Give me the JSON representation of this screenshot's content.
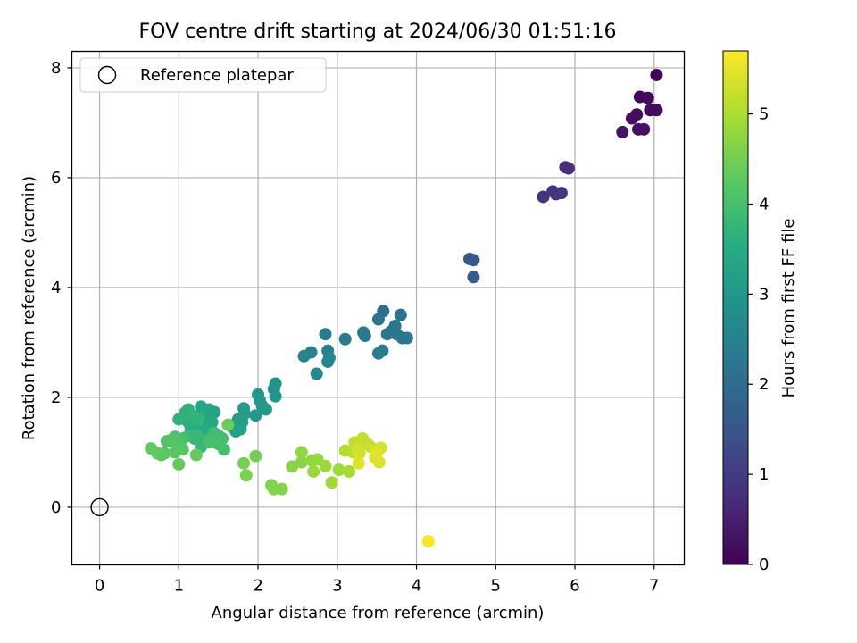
{
  "chart_data": {
    "type": "scatter",
    "title": "FOV centre drift starting at 2024/06/30 01:51:16",
    "xlabel": "Angular distance from reference (arcmin)",
    "ylabel": "Rotation from reference (arcmin)",
    "xlim": [
      -0.35,
      7.38
    ],
    "ylim": [
      -1.05,
      8.3
    ],
    "xticks": [
      0,
      1,
      2,
      3,
      4,
      5,
      6,
      7
    ],
    "yticks": [
      0,
      2,
      4,
      6,
      8
    ],
    "grid": true,
    "colormap": "viridis",
    "legend": {
      "placement": "upper-left",
      "entries": [
        {
          "label": "Reference platepar",
          "marker": "open-circle",
          "x": 0,
          "y": 0,
          "color": "#000000"
        }
      ]
    },
    "colorbar": {
      "label": "Hours from first FF file",
      "range": [
        0,
        5.7
      ],
      "ticks": [
        0,
        1,
        2,
        3,
        4,
        5
      ]
    },
    "points": [
      [
        7.03,
        7.87,
        0.05
      ],
      [
        6.82,
        7.47,
        0.1
      ],
      [
        6.92,
        7.45,
        0.12
      ],
      [
        6.95,
        7.23,
        0.15
      ],
      [
        7.03,
        7.23,
        0.18
      ],
      [
        6.78,
        7.15,
        0.2
      ],
      [
        6.72,
        7.08,
        0.22
      ],
      [
        6.8,
        6.88,
        0.25
      ],
      [
        6.87,
        6.88,
        0.28
      ],
      [
        6.6,
        6.83,
        0.3
      ],
      [
        5.88,
        6.19,
        0.75
      ],
      [
        5.92,
        6.17,
        0.78
      ],
      [
        5.6,
        5.65,
        0.85
      ],
      [
        5.72,
        5.75,
        0.88
      ],
      [
        5.76,
        5.7,
        0.9
      ],
      [
        5.83,
        5.72,
        0.92
      ],
      [
        4.67,
        4.52,
        1.55
      ],
      [
        4.72,
        4.5,
        1.58
      ],
      [
        4.72,
        4.19,
        1.62
      ],
      [
        3.58,
        3.57,
        2.1
      ],
      [
        3.52,
        3.42,
        2.15
      ],
      [
        3.8,
        3.5,
        2.18
      ],
      [
        3.73,
        3.3,
        2.2
      ],
      [
        3.68,
        3.2,
        2.22
      ],
      [
        3.63,
        3.15,
        2.24
      ],
      [
        3.75,
        3.15,
        2.25
      ],
      [
        3.82,
        3.08,
        2.28
      ],
      [
        3.88,
        3.08,
        2.3
      ],
      [
        3.33,
        3.18,
        2.32
      ],
      [
        3.35,
        3.12,
        2.33
      ],
      [
        3.1,
        3.06,
        2.35
      ],
      [
        3.57,
        2.85,
        2.37
      ],
      [
        3.52,
        2.8,
        2.38
      ],
      [
        2.85,
        3.15,
        2.4
      ],
      [
        2.88,
        2.85,
        2.45
      ],
      [
        2.67,
        2.82,
        2.5
      ],
      [
        2.58,
        2.75,
        2.55
      ],
      [
        2.9,
        2.72,
        2.58
      ],
      [
        2.88,
        2.65,
        2.6
      ],
      [
        2.74,
        2.43,
        2.65
      ],
      [
        2.22,
        2.25,
        2.9
      ],
      [
        2.2,
        2.15,
        2.92
      ],
      [
        2.22,
        2.02,
        2.95
      ],
      [
        2.0,
        2.05,
        2.97
      ],
      [
        2.02,
        1.95,
        3.0
      ],
      [
        2.05,
        1.85,
        3.02
      ],
      [
        2.1,
        1.78,
        3.05
      ],
      [
        1.97,
        1.67,
        3.08
      ],
      [
        1.82,
        1.8,
        3.1
      ],
      [
        1.83,
        1.7,
        3.12
      ],
      [
        1.75,
        1.6,
        3.15
      ],
      [
        1.8,
        1.55,
        3.18
      ],
      [
        1.7,
        1.5,
        3.2
      ],
      [
        1.65,
        1.48,
        3.22
      ],
      [
        1.78,
        1.42,
        3.25
      ],
      [
        1.72,
        1.38,
        3.27
      ],
      [
        1.45,
        1.73,
        3.3
      ],
      [
        1.38,
        1.78,
        3.32
      ],
      [
        1.28,
        1.83,
        3.35
      ],
      [
        1.35,
        1.7,
        3.37
      ],
      [
        1.42,
        1.55,
        3.4
      ],
      [
        1.3,
        1.6,
        3.42
      ],
      [
        1.25,
        1.68,
        3.45
      ],
      [
        1.4,
        1.45,
        3.47
      ],
      [
        1.35,
        1.38,
        3.5
      ],
      [
        1.28,
        1.42,
        3.52
      ],
      [
        1.2,
        1.5,
        3.55
      ],
      [
        1.15,
        1.45,
        3.57
      ],
      [
        1.12,
        1.55,
        3.6
      ],
      [
        1.05,
        1.62,
        3.62
      ],
      [
        1.08,
        1.72,
        3.65
      ],
      [
        1.12,
        1.78,
        3.67
      ],
      [
        1.0,
        1.6,
        3.7
      ],
      [
        1.18,
        1.65,
        3.72
      ],
      [
        1.25,
        1.6,
        3.75
      ],
      [
        1.3,
        1.22,
        3.77
      ],
      [
        1.2,
        1.25,
        3.78
      ],
      [
        1.28,
        1.1,
        3.8
      ],
      [
        1.22,
        1.32,
        3.82
      ],
      [
        1.12,
        1.3,
        3.85
      ],
      [
        1.4,
        1.25,
        3.87
      ],
      [
        1.45,
        1.18,
        3.9
      ],
      [
        1.45,
        1.35,
        3.92
      ],
      [
        1.5,
        1.3,
        3.94
      ],
      [
        1.55,
        1.25,
        3.96
      ],
      [
        1.5,
        1.15,
        3.98
      ],
      [
        1.57,
        1.05,
        4.0
      ],
      [
        1.38,
        1.18,
        4.02
      ],
      [
        1.05,
        1.25,
        4.05
      ],
      [
        1.0,
        1.2,
        4.07
      ],
      [
        0.95,
        1.28,
        4.1
      ],
      [
        0.9,
        1.22,
        4.12
      ],
      [
        0.85,
        1.2,
        4.15
      ],
      [
        0.98,
        1.12,
        4.17
      ],
      [
        1.05,
        1.05,
        4.2
      ],
      [
        0.95,
        1.0,
        4.22
      ],
      [
        0.82,
        0.98,
        4.25
      ],
      [
        0.78,
        0.95,
        4.27
      ],
      [
        0.73,
        0.98,
        4.3
      ],
      [
        0.65,
        1.07,
        4.32
      ],
      [
        1.0,
        0.78,
        4.35
      ],
      [
        1.22,
        0.95,
        4.37
      ],
      [
        1.62,
        1.5,
        4.4
      ],
      [
        1.97,
        0.93,
        4.5
      ],
      [
        1.82,
        0.8,
        4.52
      ],
      [
        1.85,
        0.58,
        4.55
      ],
      [
        2.17,
        0.4,
        4.6
      ],
      [
        2.2,
        0.33,
        4.62
      ],
      [
        2.3,
        0.33,
        4.65
      ],
      [
        2.43,
        0.74,
        4.7
      ],
      [
        2.55,
        0.82,
        4.72
      ],
      [
        2.55,
        1.0,
        4.75
      ],
      [
        2.68,
        0.85,
        4.78
      ],
      [
        2.75,
        0.87,
        4.8
      ],
      [
        2.7,
        0.65,
        4.82
      ],
      [
        2.85,
        0.75,
        4.85
      ],
      [
        2.93,
        0.45,
        4.88
      ],
      [
        3.02,
        0.68,
        4.9
      ],
      [
        3.15,
        0.65,
        4.95
      ],
      [
        3.1,
        1.03,
        5.05
      ],
      [
        3.2,
        1.0,
        5.1
      ],
      [
        3.25,
        1.1,
        5.12
      ],
      [
        3.22,
        1.18,
        5.15
      ],
      [
        3.32,
        1.25,
        5.18
      ],
      [
        3.38,
        1.15,
        5.2
      ],
      [
        3.42,
        1.1,
        5.25
      ],
      [
        3.28,
        0.98,
        5.3
      ],
      [
        3.25,
        1.05,
        5.32
      ],
      [
        3.55,
        1.08,
        5.35
      ],
      [
        3.48,
        0.9,
        5.38
      ],
      [
        3.53,
        0.82,
        5.4
      ],
      [
        3.27,
        0.8,
        5.42
      ],
      [
        3.5,
        1.0,
        5.45
      ],
      [
        4.15,
        -0.62,
        5.65
      ]
    ]
  }
}
